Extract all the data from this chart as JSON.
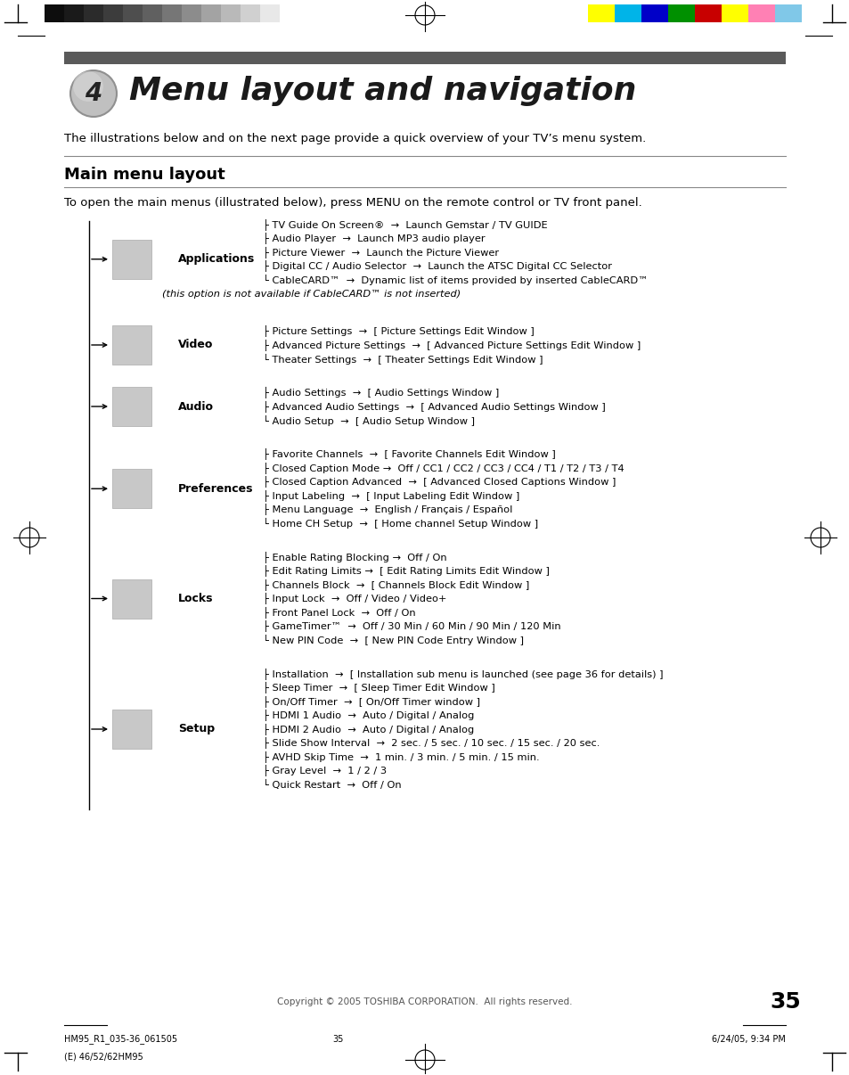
{
  "page_title": "Menu layout and navigation",
  "chapter_num": "4",
  "section_title": "Main menu layout",
  "intro_text": "The illustrations below and on the next page provide a quick overview of your TV’s menu system.",
  "section_intro": "To open the main menus (illustrated below), press MENU on the remote control or TV front panel.",
  "background_color": "#ffffff",
  "text_color": "#000000",
  "header_bar_color": "#5a5a5a",
  "page_number": "35",
  "copyright_text": "Copyright © 2005 TOSHIBA CORPORATION.  All rights reserved.",
  "menu_sections": [
    {
      "name": "Applications",
      "items": [
        "├ TV Guide On Screen®  →  Launch Gemstar / TV GUIDE",
        "├ Audio Player  →  Launch MP3 audio player",
        "├ Picture Viewer  →  Launch the Picture Viewer",
        "├ Digital CC / Audio Selector  →  Launch the ATSC Digital CC Selector",
        "└ CableCARD™  →  Dynamic list of items provided by inserted CableCARD™",
        "(this option is not available if CableCARD™ is not inserted)"
      ]
    },
    {
      "name": "Video",
      "items": [
        "├ Picture Settings  →  [ Picture Settings Edit Window ]",
        "├ Advanced Picture Settings  →  [ Advanced Picture Settings Edit Window ]",
        "└ Theater Settings  →  [ Theater Settings Edit Window ]"
      ]
    },
    {
      "name": "Audio",
      "items": [
        "├ Audio Settings  →  [ Audio Settings Window ]",
        "├ Advanced Audio Settings  →  [ Advanced Audio Settings Window ]",
        "└ Audio Setup  →  [ Audio Setup Window ]"
      ]
    },
    {
      "name": "Preferences",
      "items": [
        "├ Favorite Channels  →  [ Favorite Channels Edit Window ]",
        "├ Closed Caption Mode →  Off / CC1 / CC2 / CC3 / CC4 / T1 / T2 / T3 / T4",
        "├ Closed Caption Advanced  →  [ Advanced Closed Captions Window ]",
        "├ Input Labeling  →  [ Input Labeling Edit Window ]",
        "├ Menu Language  →  English / Français / Español",
        "└ Home CH Setup  →  [ Home channel Setup Window ]"
      ]
    },
    {
      "name": "Locks",
      "items": [
        "├ Enable Rating Blocking →  Off / On",
        "├ Edit Rating Limits →  [ Edit Rating Limits Edit Window ]",
        "├ Channels Block  →  [ Channels Block Edit Window ]",
        "├ Input Lock  →  Off / Video / Video+",
        "├ Front Panel Lock  →  Off / On",
        "├ GameTimer™  →  Off / 30 Min / 60 Min / 90 Min / 120 Min",
        "└ New PIN Code  →  [ New PIN Code Entry Window ]"
      ]
    },
    {
      "name": "Setup",
      "items": [
        "├ Installation  →  [ Installation sub menu is launched (see page 36 for details) ]",
        "├ Sleep Timer  →  [ Sleep Timer Edit Window ]",
        "├ On/Off Timer  →  [ On/Off Timer window ]",
        "├ HDMI 1 Audio  →  Auto / Digital / Analog",
        "├ HDMI 2 Audio  →  Auto / Digital / Analog",
        "├ Slide Show Interval  →  2 sec. / 5 sec. / 10 sec. / 15 sec. / 20 sec.",
        "├ AVHD Skip Time  →  1 min. / 3 min. / 5 min. / 15 min.",
        "├ Gray Level  →  1 / 2 / 3",
        "└ Quick Restart  →  Off / On"
      ]
    }
  ]
}
